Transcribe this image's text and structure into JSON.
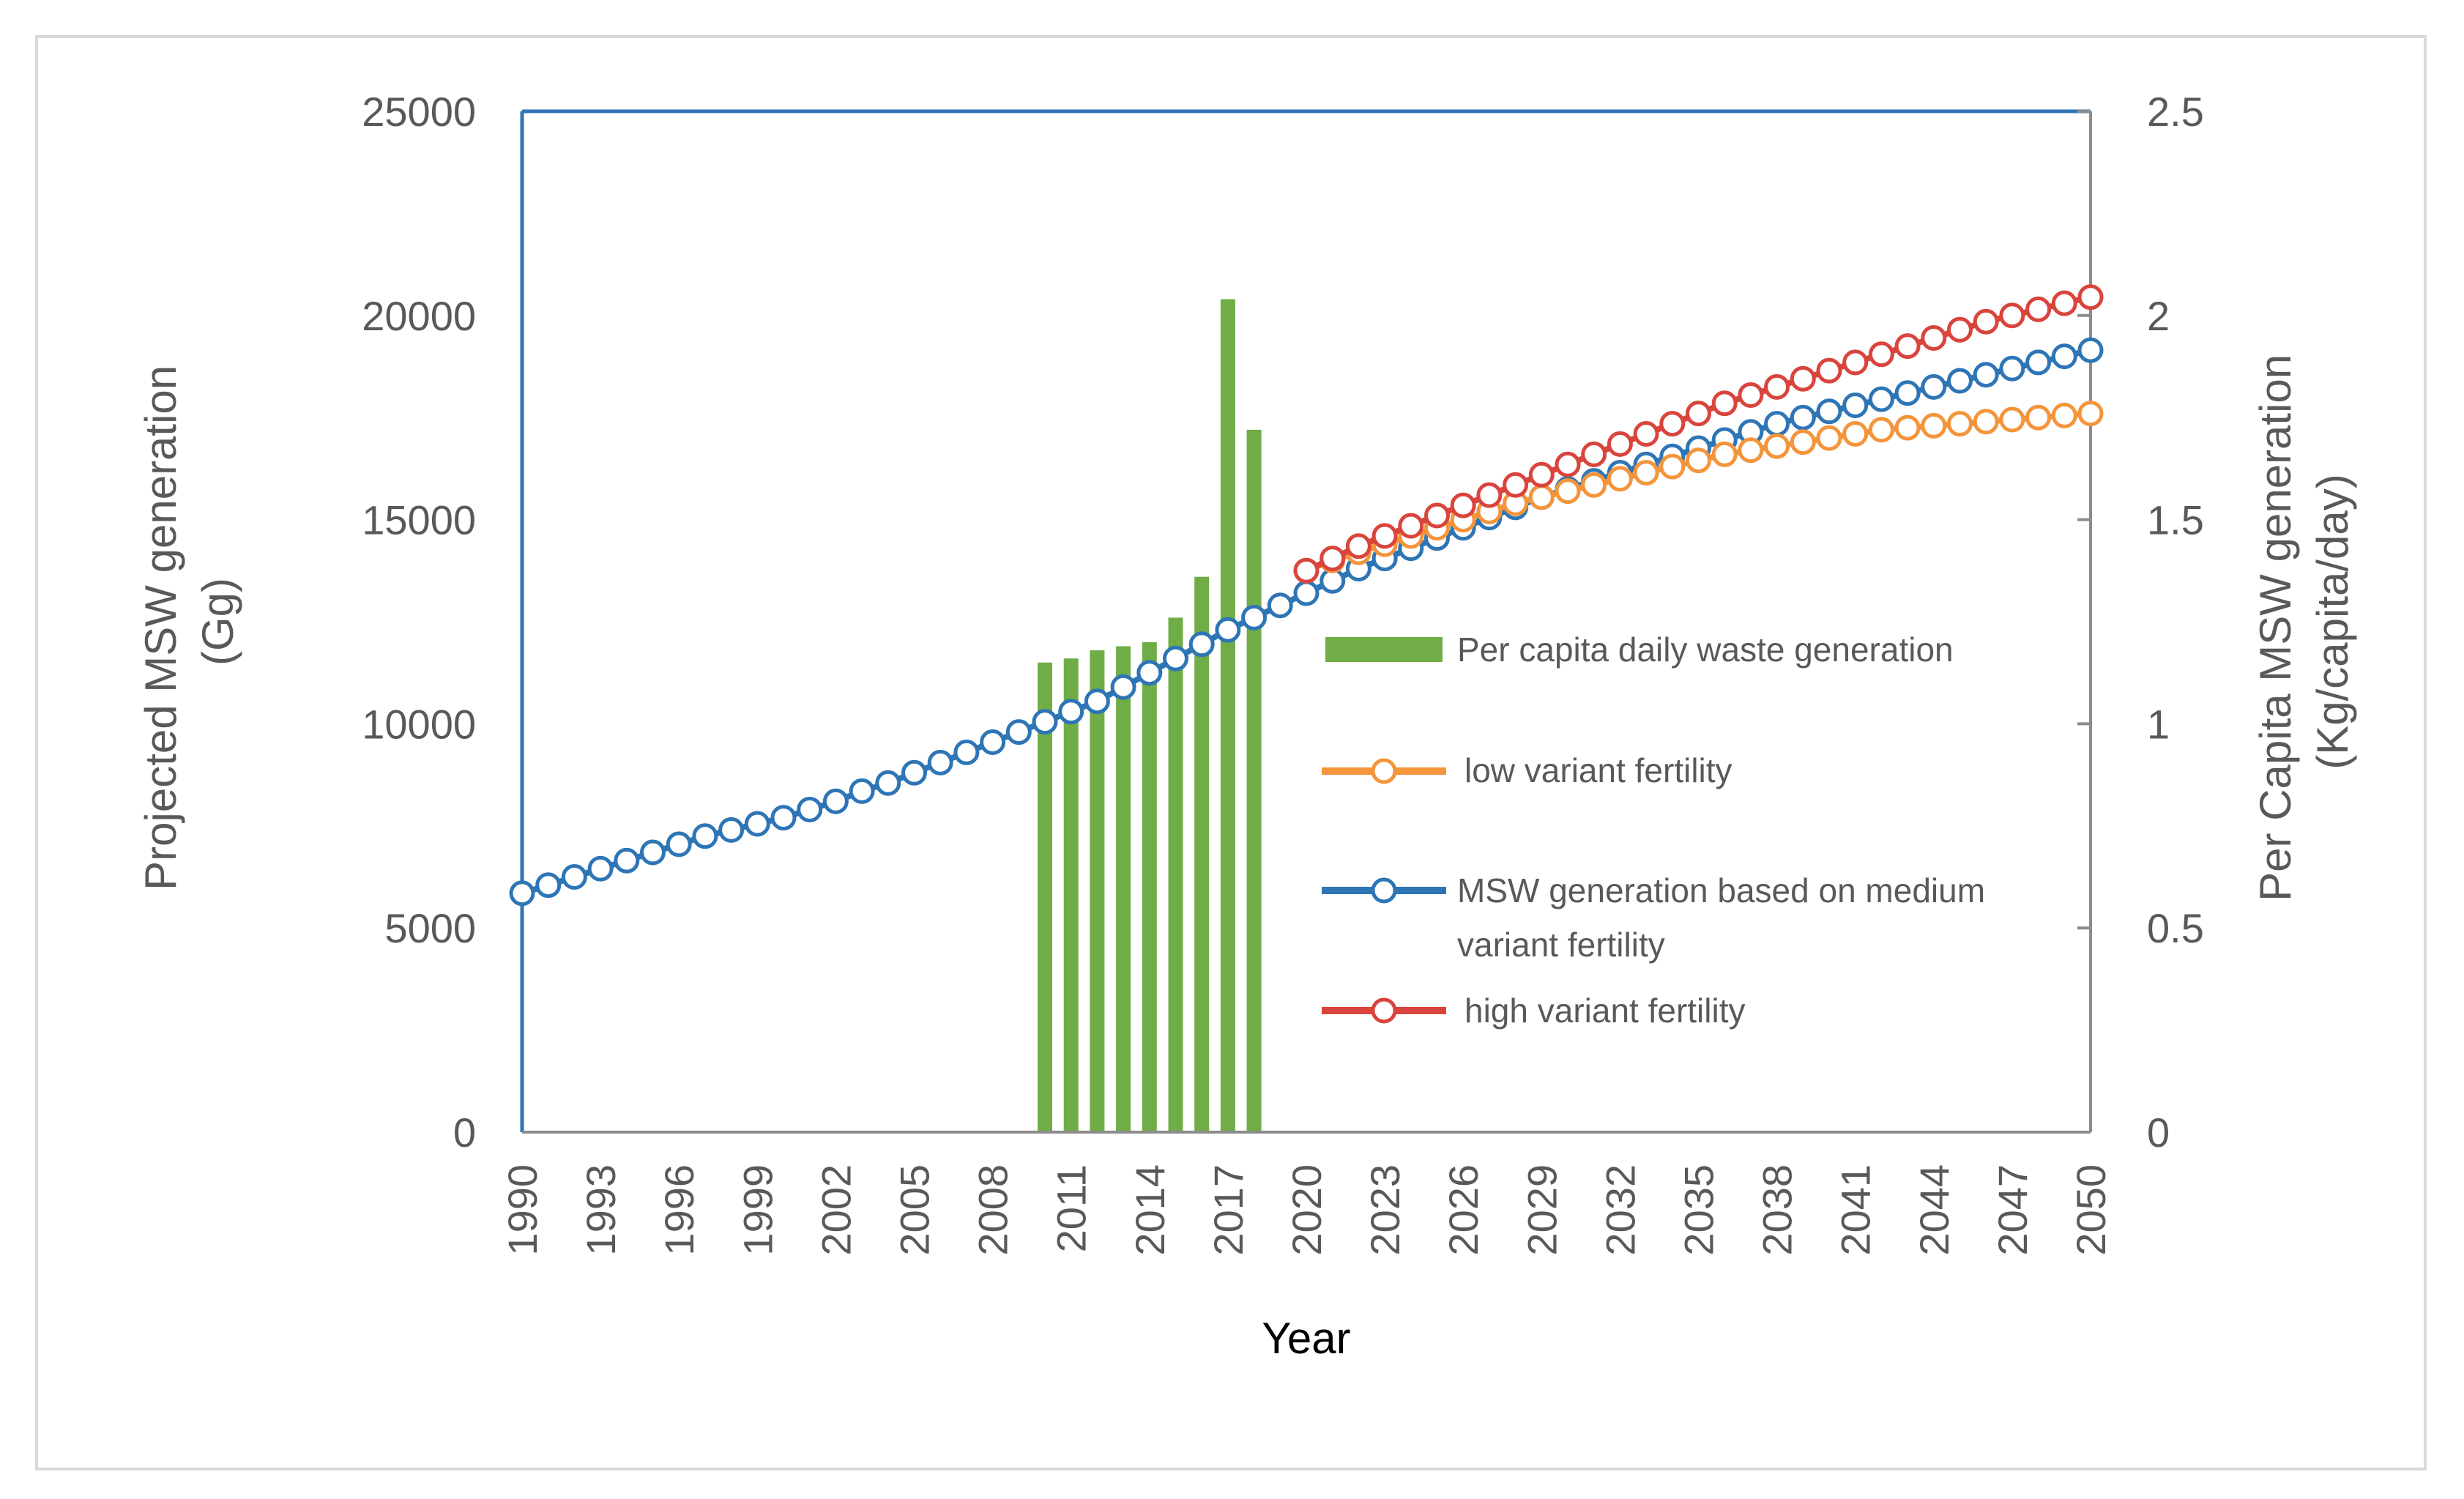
{
  "chart_data": {
    "type": "bar+line",
    "title": "",
    "xlabel": "Year",
    "ylabel_left": "Projected MSW generation (Gg)",
    "ylabel_left_lines": [
      "Projected MSW generation",
      "(Gg)"
    ],
    "ylabel_right": "Per Capita MSW generation (Kg/capita/day)",
    "ylabel_right_lines": [
      "Per Capita MSW generation",
      "(Kg/capita/day)"
    ],
    "ylim_left": [
      0,
      25000
    ],
    "ylim_right": [
      0,
      2.5
    ],
    "yticks_left": [
      "0",
      "5000",
      "10000",
      "15000",
      "20000",
      "25000"
    ],
    "yticks_right": [
      "0",
      "0.5",
      "1",
      "1.5",
      "2",
      "2.5"
    ],
    "x_range": [
      1990,
      2050
    ],
    "xticks": [
      "1990",
      "1993",
      "1996",
      "1999",
      "2002",
      "2005",
      "2008",
      "2011",
      "2014",
      "2017",
      "2020",
      "2023",
      "2026",
      "2029",
      "2032",
      "2035",
      "2038",
      "2041",
      "2044",
      "2047",
      "2050"
    ],
    "bars": {
      "name": "Per capita daily waste generation",
      "axis": "right",
      "color": "#70ad47",
      "years": [
        2010,
        2011,
        2012,
        2013,
        2014,
        2015,
        2016,
        2017,
        2018
      ],
      "values": [
        1.15,
        1.16,
        1.18,
        1.19,
        1.2,
        1.26,
        1.36,
        2.04,
        1.72
      ]
    },
    "series": [
      {
        "name": "MSW generation based on medium variant fertility",
        "name_lines": [
          "MSW generation based on medium",
          "variant fertility"
        ],
        "axis": "left",
        "color": "#2e75b6",
        "start_year": 1990,
        "values": [
          5850,
          6050,
          6250,
          6450,
          6650,
          6850,
          7050,
          7250,
          7400,
          7550,
          7700,
          7900,
          8100,
          8350,
          8550,
          8800,
          9050,
          9300,
          9550,
          9800,
          10050,
          10300,
          10550,
          10900,
          11250,
          11600,
          11950,
          12300,
          12600,
          12900,
          13200,
          13500,
          13800,
          14050,
          14300,
          14550,
          14800,
          15050,
          15300,
          15550,
          15750,
          15950,
          16150,
          16350,
          16550,
          16750,
          16950,
          17150,
          17350,
          17500,
          17650,
          17800,
          17950,
          18100,
          18250,
          18400,
          18550,
          18700,
          18850,
          19000,
          19150
        ]
      },
      {
        "name": "low variant fertility",
        "axis": "left",
        "color": "#f4953b",
        "start_year": 2020,
        "values": [
          13750,
          14000,
          14200,
          14400,
          14600,
          14800,
          15000,
          15200,
          15400,
          15550,
          15700,
          15850,
          16000,
          16150,
          16300,
          16450,
          16600,
          16700,
          16800,
          16900,
          17000,
          17100,
          17200,
          17250,
          17300,
          17350,
          17400,
          17450,
          17500,
          17550,
          17600
        ]
      },
      {
        "name": "high variant fertility",
        "axis": "left",
        "color": "#d9443c",
        "start_year": 2020,
        "values": [
          13750,
          14050,
          14350,
          14600,
          14850,
          15100,
          15350,
          15600,
          15850,
          16100,
          16350,
          16600,
          16850,
          17100,
          17350,
          17600,
          17850,
          18050,
          18250,
          18450,
          18650,
          18850,
          19050,
          19250,
          19450,
          19650,
          19850,
          20000,
          20150,
          20300,
          20450
        ]
      }
    ],
    "legend": {
      "placement": "center-right",
      "bar_label": "Per capita daily waste generation",
      "low_label": "low variant fertility",
      "medium_label_lines": [
        "MSW generation based on medium",
        "variant fertility"
      ],
      "high_label": "high variant fertility"
    }
  }
}
